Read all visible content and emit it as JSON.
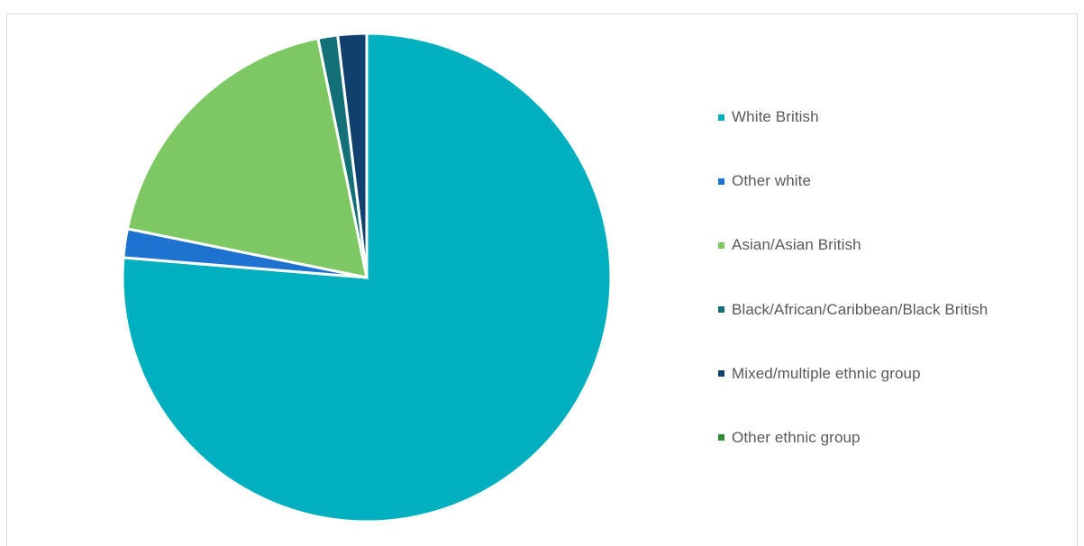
{
  "caption": "",
  "chart_data": {
    "type": "pie",
    "title": "",
    "start_angle_deg": 0,
    "direction": "clockwise",
    "legend_position": "right",
    "slices": [
      {
        "label": "White British",
        "value": 76.3,
        "color": "#00b0be"
      },
      {
        "label": "Other white",
        "value": 1.9,
        "color": "#1f73d0"
      },
      {
        "label": "Asian/Asian British",
        "value": 18.6,
        "color": "#7ec863"
      },
      {
        "label": "Black/African/Caribbean/Black British",
        "value": 1.3,
        "color": "#137077"
      },
      {
        "label": "Mixed/multiple ethnic group",
        "value": 1.9,
        "color": "#12406e"
      },
      {
        "label": "Other ethnic group",
        "value": 0.0,
        "color": "#2f8a35"
      }
    ]
  }
}
